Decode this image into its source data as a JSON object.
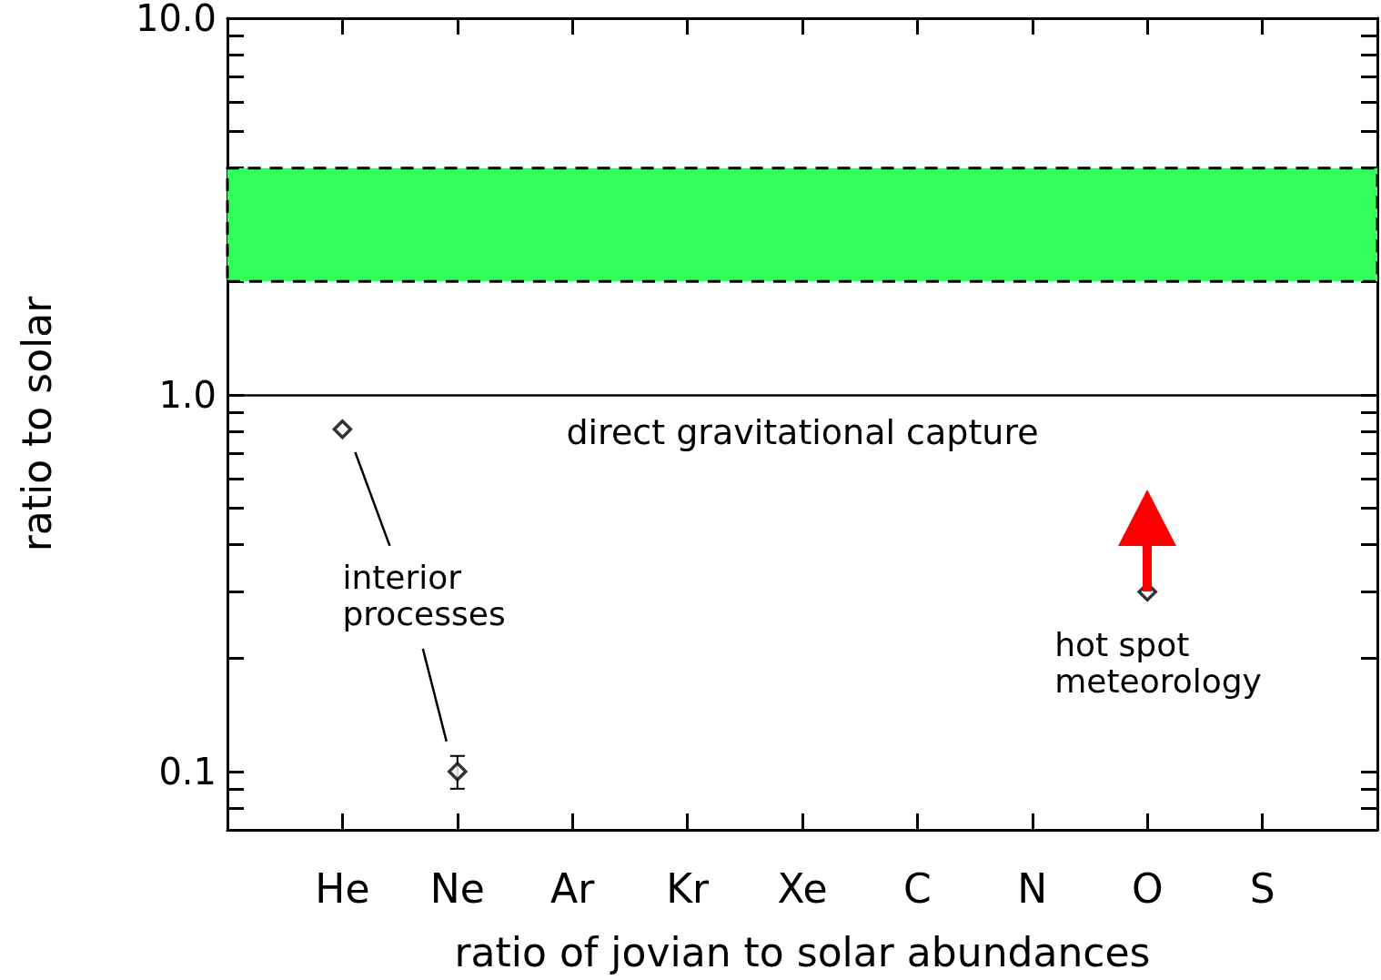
{
  "chart_data": {
    "type": "scatter",
    "xlabel": "ratio of jovian to solar abundances",
    "ylabel": "ratio to solar",
    "categories": [
      null,
      "He",
      "Ne",
      "Ar",
      "Kr",
      "Xe",
      "C",
      "N",
      "O",
      "S",
      null
    ],
    "series": [
      {
        "color": "#000000",
        "values": [
          null,
          0.81,
          0.1,
          null,
          null,
          null,
          null,
          null,
          0.3,
          null,
          null
        ],
        "errors": [
          null,
          null,
          [
            0.09,
            0.11
          ],
          null,
          null,
          null,
          null,
          null,
          null,
          null,
          null
        ]
      }
    ],
    "ylim": [
      0.07,
      10
    ],
    "yticks": [
      {
        "value": 0.1,
        "label": "0.1"
      },
      {
        "value": 1,
        "label": "1.0"
      },
      {
        "value": 10,
        "label": "10.0"
      }
    ],
    "log": "y",
    "grid": false,
    "marker": "diamond",
    "ref_lines": [
      {
        "axis": "y",
        "value": 1,
        "label": "direct gravitational capture",
        "color": "#000000"
      }
    ],
    "bands": [
      {
        "axis": "y",
        "from": 2,
        "to": 4,
        "color": "#33ff5a"
      }
    ],
    "annotations": [
      "interior processes",
      "hot spot meteorology"
    ]
  }
}
